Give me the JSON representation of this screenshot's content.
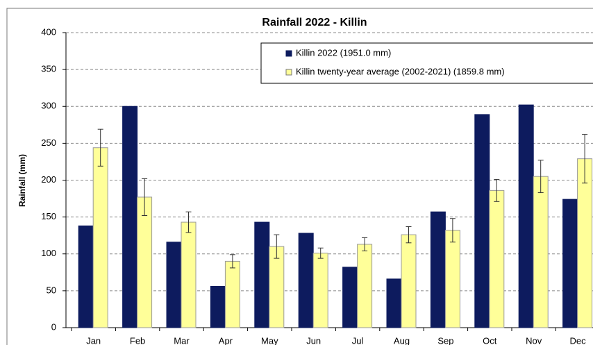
{
  "chart_data": {
    "type": "bar",
    "title": "Rainfall 2022 - Killin",
    "y_label": "Rainfall (mm)",
    "categories": [
      "Jan",
      "Feb",
      "Mar",
      "Apr",
      "May",
      "Jun",
      "Jul",
      "Aug",
      "Sep",
      "Oct",
      "Nov",
      "Dec"
    ],
    "series": [
      {
        "name": "Killin 2022 (1951.0 mm)",
        "color": "#0d1b5e",
        "values": [
          138,
          300,
          116,
          56,
          143,
          128,
          82,
          66,
          157,
          289,
          302,
          174
        ]
      },
      {
        "name": "Killin twenty-year average (2002-2021) (1859.8 mm)",
        "color": "#ffff99",
        "values": [
          244,
          177,
          143,
          90,
          110,
          101,
          113,
          126,
          132,
          186,
          205,
          229
        ],
        "errors": [
          25,
          25,
          14,
          9,
          16,
          7,
          9,
          11,
          16,
          15,
          22,
          33
        ]
      }
    ],
    "ylim": [
      0,
      400
    ],
    "yticks": [
      0,
      50,
      100,
      150,
      200,
      250,
      300,
      350,
      400
    ],
    "grid": true,
    "legend": "top-right"
  }
}
